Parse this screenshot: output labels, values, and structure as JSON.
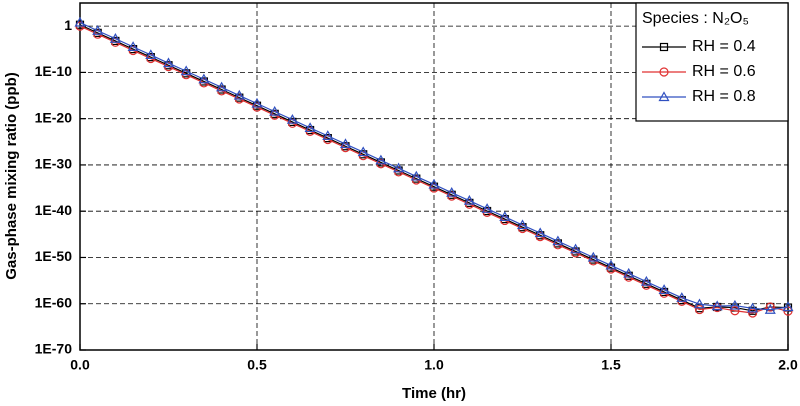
{
  "chart_data": {
    "type": "line",
    "xlabel": "Time (hr)",
    "ylabel": "Gas-phase mixing ratio (ppb)",
    "legend_title": "Species : N₂O₅",
    "legend": "upper right",
    "log_y": true,
    "grid": true,
    "xlim": [
      0,
      2
    ],
    "xticks": [
      {
        "value": 0,
        "label": "0.0"
      },
      0.5,
      {
        "value": 1,
        "label": "1.0"
      },
      1.5,
      {
        "value": 2,
        "label": "2.0"
      }
    ],
    "ylim": [
      1e-70,
      100000.0
    ],
    "yticks": [
      1,
      {
        "value": 1e-10,
        "label": "1E-10"
      },
      {
        "value": 1e-20,
        "label": "1E-20"
      },
      {
        "value": 1e-30,
        "label": "1E-30"
      },
      {
        "value": 1e-40,
        "label": "1E-40"
      },
      {
        "value": 1e-50,
        "label": "1E-50"
      },
      {
        "value": 1e-60,
        "label": "1E-60"
      },
      {
        "value": 1e-70,
        "label": "1E-70"
      }
    ],
    "x": [
      0,
      0.05,
      0.1,
      0.15,
      0.2,
      0.25,
      0.3,
      0.35,
      0.4,
      0.45,
      0.5,
      0.55,
      0.6,
      0.65,
      0.7,
      0.75,
      0.8,
      0.85,
      0.9,
      0.95,
      1,
      1.05,
      1.1,
      1.15,
      1.2,
      1.25,
      1.3,
      1.35,
      1.4,
      1.45,
      1.5,
      1.55,
      1.6,
      1.65,
      1.7,
      1.75,
      1.8,
      1.85,
      1.9,
      1.95,
      2
    ],
    "series": [
      {
        "name": "RH = 0.4",
        "color": "#000000",
        "marker": "square",
        "values": [
          2,
          0.035,
          0.00063,
          1.1e-05,
          2e-07,
          3.5e-09,
          6.3e-11,
          1.1e-12,
          2e-14,
          3.5e-16,
          6.3e-18,
          1.1e-19,
          2e-21,
          3.5e-23,
          6.3e-25,
          1.1e-26,
          2e-28,
          3.5e-30,
          6.3e-32,
          1.1e-33,
          2e-35,
          3.5e-37,
          6.3e-39,
          1.1e-40,
          2e-42,
          3.5e-44,
          6.3e-46,
          1.1e-47,
          2e-49,
          3.5e-51,
          6.3e-53,
          1.1e-54,
          2e-56,
          3.5e-58,
          6.3e-60,
          1.1e-61,
          2e-61,
          1.5e-61,
          3e-62,
          2e-61,
          1.5e-61
        ]
      },
      {
        "name": "RH = 0.6",
        "color": "#e03030",
        "marker": "circle",
        "values": [
          1,
          0.018,
          0.00032,
          5.5e-06,
          1e-07,
          1.8e-09,
          3.2e-11,
          5.5e-13,
          1e-14,
          1.8e-16,
          3.2e-18,
          5.5e-20,
          1e-21,
          1.8e-23,
          3.2e-25,
          5.5e-27,
          1e-28,
          1.8e-30,
          3.2e-32,
          5.5e-34,
          1e-35,
          1.8e-37,
          3.2e-39,
          5.5e-41,
          1e-42,
          1.8e-44,
          3.2e-46,
          5.5e-48,
          1e-49,
          1.8e-51,
          3.2e-53,
          5.5e-55,
          1e-56,
          1.8e-58,
          3.2e-60,
          5.5e-62,
          1.5e-61,
          3e-62,
          1e-62,
          2e-61,
          2.5e-62
        ]
      },
      {
        "name": "RH = 0.8",
        "color": "#3050c0",
        "marker": "triangle",
        "values": [
          6,
          0.1,
          0.0019,
          3.3e-05,
          6e-07,
          1e-08,
          1.9e-10,
          3.3e-12,
          6e-14,
          1e-15,
          1.9e-17,
          3.3e-19,
          6e-21,
          1e-22,
          1.9e-24,
          3.3e-26,
          6e-28,
          1e-29,
          1.9e-31,
          3.3e-33,
          6e-35,
          1e-36,
          1.9e-38,
          3.3e-40,
          6e-42,
          1e-43,
          1.9e-45,
          3.3e-47,
          6e-49,
          1e-50,
          1.9e-52,
          3.3e-54,
          6e-56,
          1e-57,
          1.9e-59,
          8e-61,
          3e-61,
          4e-61,
          1e-61,
          5e-62,
          2e-61
        ]
      }
    ]
  }
}
